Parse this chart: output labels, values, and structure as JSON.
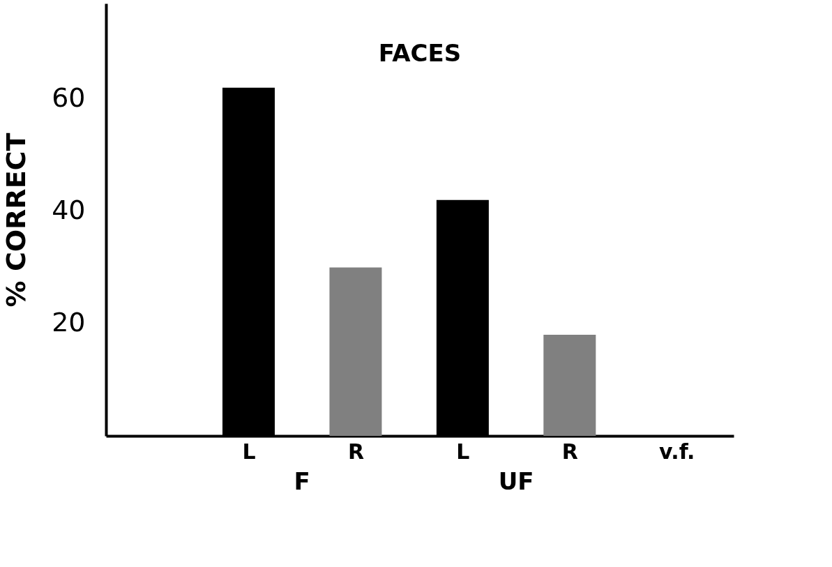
{
  "chart_data": {
    "type": "bar",
    "title": "FACES",
    "ylabel": "% CORRECT",
    "categories": [
      "L",
      "R",
      "L",
      "R",
      "v.f."
    ],
    "values": [
      62,
      30,
      42,
      18,
      null
    ],
    "colors": [
      "#000000",
      "#808080",
      "#000000",
      "#808080",
      "#000000"
    ],
    "annotations": [
      "F",
      "UF"
    ],
    "ylim": [
      0,
      77
    ],
    "yticks": [
      20,
      40,
      60
    ],
    "grid": false
  }
}
